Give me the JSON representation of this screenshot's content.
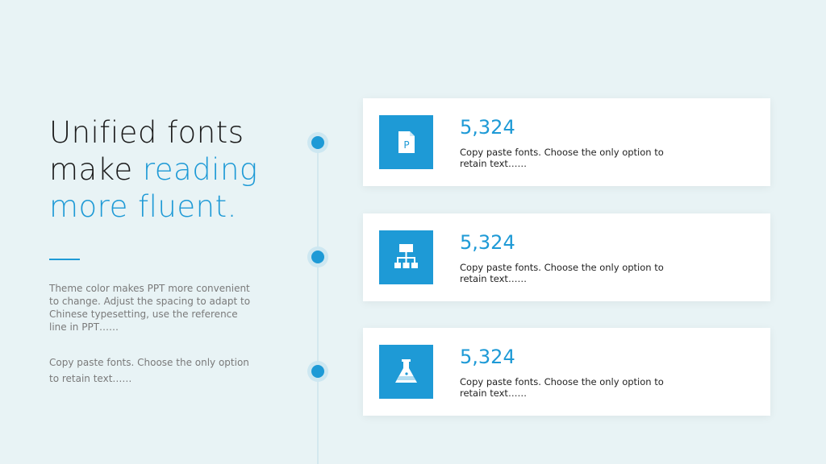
{
  "title": {
    "lines": [
      "Unified fonts",
      "make",
      "reading",
      "more fluent."
    ]
  },
  "intro": {
    "paragraphs": [
      "Theme color makes PPT more convenient to change. Adjust the spacing to adapt to Chinese typesetting, use the reference line in PPT……",
      "Copy paste fonts. Choose the only option to retain text……"
    ]
  },
  "cards": [
    {
      "icon_text": "P",
      "value": "5,324",
      "text": "Copy paste fonts. Choose the only option to retain text……"
    },
    {
      "value": "5,324",
      "text": "Copy paste fonts. Choose the only option to retain text……"
    },
    {
      "value": "5,324",
      "text": "Copy paste fonts. Choose the only option to retain text……"
    }
  ]
}
